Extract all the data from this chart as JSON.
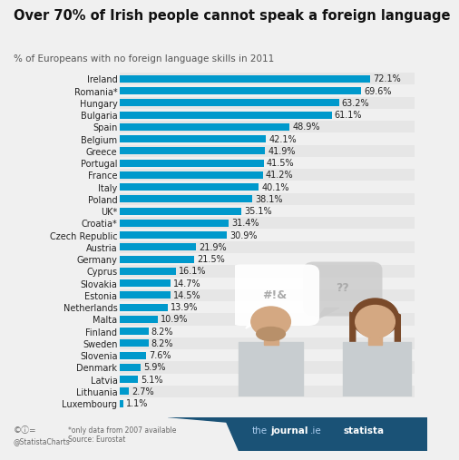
{
  "title": "Over 70% of Irish people cannot speak a foreign language",
  "subtitle": "% of Europeans with no foreign language skills in 2011",
  "footnote_line1": "*only data from 2007 available",
  "footnote_line2": "Source: Eurostat",
  "categories": [
    "Ireland",
    "Romania*",
    "Hungary",
    "Bulgaria",
    "Spain",
    "Belgium",
    "Greece",
    "Portugal",
    "France",
    "Italy",
    "Poland",
    "UK*",
    "Croatia*",
    "Czech Republic",
    "Austria",
    "Germany",
    "Cyprus",
    "Slovakia",
    "Estonia",
    "Netherlands",
    "Malta",
    "Finland",
    "Sweden",
    "Slovenia",
    "Denmark",
    "Latvia",
    "Lithuania",
    "Luxembourg"
  ],
  "values": [
    72.1,
    69.6,
    63.2,
    61.1,
    48.9,
    42.1,
    41.9,
    41.5,
    41.2,
    40.1,
    38.1,
    35.1,
    31.4,
    30.9,
    21.9,
    21.5,
    16.1,
    14.7,
    14.5,
    13.9,
    10.9,
    8.2,
    8.2,
    7.6,
    5.9,
    5.1,
    2.7,
    1.1
  ],
  "bar_color": "#0099cc",
  "bg_color": "#f0f0f0",
  "row_even_color": "#e6e6e6",
  "row_odd_color": "#f0f0f0",
  "title_fontsize": 10.5,
  "subtitle_fontsize": 7.5,
  "label_fontsize": 7.0,
  "value_fontsize": 7.0,
  "xlim": [
    0,
    85
  ],
  "footer_bg": "#1a5276",
  "journal_color": "#2980b9",
  "statista_color": "#333333"
}
